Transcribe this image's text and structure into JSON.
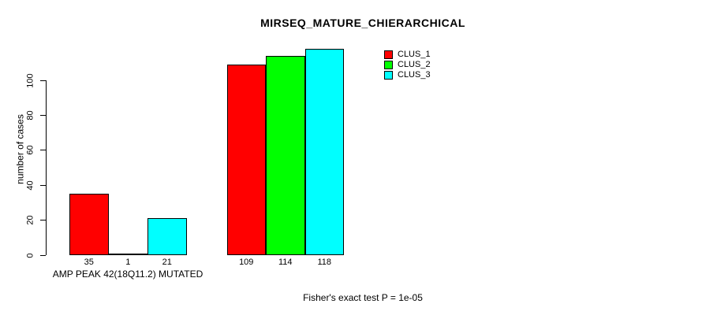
{
  "chart_data": {
    "type": "bar",
    "title": "MIRSEQ_MATURE_CHIERARCHICAL",
    "ylabel": "number of cases",
    "xlabel": "AMP PEAK 42(18Q11.2) MUTATED",
    "annotation": "Fisher's exact test P = 1e-05",
    "y_ticks": [
      0,
      20,
      40,
      60,
      80,
      100
    ],
    "ylim": [
      0,
      120
    ],
    "grid": false,
    "legend_position": "top-right",
    "group_count": 2,
    "series": [
      {
        "name": "CLUS_1",
        "color": "#ff0000",
        "values": [
          35,
          109
        ]
      },
      {
        "name": "CLUS_2",
        "color": "#00ff00",
        "values": [
          1,
          114
        ]
      },
      {
        "name": "CLUS_3",
        "color": "#00ffff",
        "values": [
          21,
          118
        ]
      }
    ],
    "bar_value_labels": [
      "35",
      "1",
      "21",
      "109",
      "114",
      "118"
    ],
    "axis_color": "#000000",
    "background_color": "#ffffff"
  }
}
